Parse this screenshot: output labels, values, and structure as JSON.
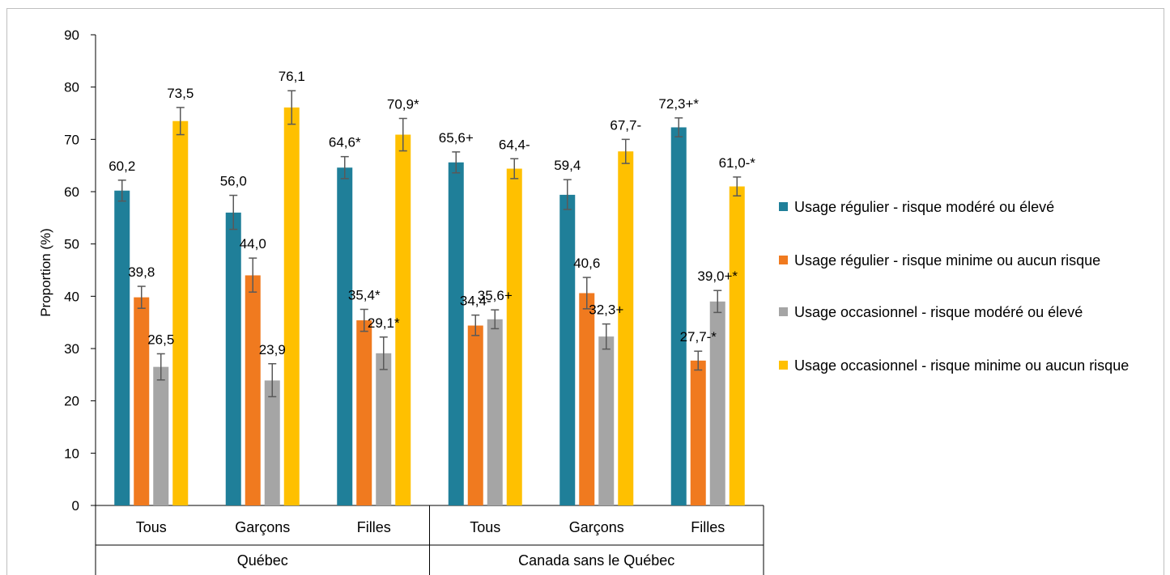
{
  "chart_data": {
    "type": "bar",
    "ylabel": "Proportion (%)",
    "ylim": [
      0,
      90
    ],
    "yticks": [
      0,
      10,
      20,
      30,
      40,
      50,
      60,
      70,
      80,
      90
    ],
    "grid": false,
    "legend_position": "right",
    "groups": [
      {
        "label": "Québec",
        "categories": [
          "Tous",
          "Garçons",
          "Filles"
        ]
      },
      {
        "label": "Canada sans le Québec",
        "categories": [
          "Tous",
          "Garçons",
          "Filles"
        ]
      }
    ],
    "categories": [
      "Tous",
      "Garçons",
      "Filles",
      "Tous",
      "Garçons",
      "Filles"
    ],
    "series": [
      {
        "name": "Usage régulier - risque modéré ou élevé",
        "color": "#1f7f99",
        "values": [
          60.2,
          56.0,
          64.6,
          65.6,
          59.4,
          72.3
        ],
        "error_low": [
          58.2,
          52.8,
          62.5,
          63.6,
          56.6,
          70.5
        ],
        "error_high": [
          62.2,
          59.3,
          66.7,
          67.6,
          62.3,
          74.1
        ],
        "labels": [
          "60,2",
          "56,0",
          "64,6*",
          "65,6+",
          "59,4",
          "72,3+*"
        ]
      },
      {
        "name": "Usage régulier - risque minime ou aucun risque",
        "color": "#f07a1f",
        "values": [
          39.8,
          44.0,
          35.4,
          34.4,
          40.6,
          27.7
        ],
        "error_low": [
          37.7,
          40.8,
          33.3,
          32.5,
          37.6,
          25.9
        ],
        "error_high": [
          41.9,
          47.3,
          37.5,
          36.4,
          43.6,
          29.5
        ],
        "labels": [
          "39,8",
          "44,0",
          "35,4*",
          "34,4-",
          "40,6",
          "27,7-*"
        ]
      },
      {
        "name": "Usage occasionnel - risque modéré ou élevé",
        "color": "#a5a5a5",
        "values": [
          26.5,
          23.9,
          29.1,
          35.6,
          32.3,
          39.0
        ],
        "error_low": [
          24.0,
          20.8,
          26.0,
          33.8,
          29.9,
          36.9
        ],
        "error_high": [
          29.0,
          27.1,
          32.2,
          37.4,
          34.7,
          41.1
        ],
        "labels": [
          "26,5",
          "23,9",
          "29,1*",
          "35,6+",
          "32,3+",
          "39,0+*"
        ]
      },
      {
        "name": "Usage occasionnel - risque minime ou aucun risque",
        "color": "#ffc000",
        "values": [
          73.5,
          76.1,
          70.9,
          64.4,
          67.7,
          61.0
        ],
        "error_low": [
          70.9,
          72.9,
          67.8,
          62.5,
          65.4,
          59.2
        ],
        "error_high": [
          76.1,
          79.3,
          74.0,
          66.3,
          70.0,
          62.8
        ],
        "labels": [
          "73,5",
          "76,1",
          "70,9*",
          "64,4-",
          "67,7-",
          "61,0-*"
        ]
      }
    ]
  }
}
